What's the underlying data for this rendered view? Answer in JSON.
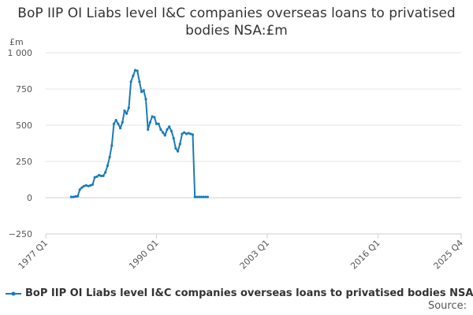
{
  "chart_data": {
    "type": "line",
    "title": "BoP IIP OI Liabs level I&C companies overseas loans to privatised bodies NSA:£m",
    "ylabel": "£m",
    "xlabel": "",
    "ylim": [
      -250,
      1000
    ],
    "y_ticks": [
      -250,
      0,
      250,
      500,
      750,
      1000
    ],
    "y_tick_labels": [
      "−250",
      "0",
      "250",
      "500",
      "750",
      "1 000"
    ],
    "x_range": [
      "1977 Q1",
      "2025 Q4"
    ],
    "x_ticks": [
      "1977 Q1",
      "1990 Q1",
      "2003 Q1",
      "2016 Q1",
      "2025 Q4"
    ],
    "grid": true,
    "legend_position": "bottom",
    "series": [
      {
        "name": "BoP IIP OI Liabs level I&C companies overseas loans to privatised bodies NSA:£m",
        "color": "#1a7bb9",
        "points": [
          [
            "1980 Q1",
            5
          ],
          [
            "1980 Q2",
            5
          ],
          [
            "1980 Q3",
            8
          ],
          [
            "1980 Q4",
            10
          ],
          [
            "1981 Q1",
            55
          ],
          [
            "1981 Q2",
            70
          ],
          [
            "1981 Q3",
            80
          ],
          [
            "1981 Q4",
            85
          ],
          [
            "1982 Q1",
            80
          ],
          [
            "1982 Q2",
            85
          ],
          [
            "1982 Q3",
            90
          ],
          [
            "1982 Q4",
            140
          ],
          [
            "1983 Q1",
            145
          ],
          [
            "1983 Q2",
            155
          ],
          [
            "1983 Q3",
            150
          ],
          [
            "1983 Q4",
            150
          ],
          [
            "1984 Q1",
            175
          ],
          [
            "1984 Q2",
            220
          ],
          [
            "1984 Q3",
            280
          ],
          [
            "1984 Q4",
            360
          ],
          [
            "1985 Q1",
            510
          ],
          [
            "1985 Q2",
            535
          ],
          [
            "1985 Q3",
            510
          ],
          [
            "1985 Q4",
            480
          ],
          [
            "1986 Q1",
            520
          ],
          [
            "1986 Q2",
            600
          ],
          [
            "1986 Q3",
            580
          ],
          [
            "1986 Q4",
            620
          ],
          [
            "1987 Q1",
            800
          ],
          [
            "1987 Q2",
            840
          ],
          [
            "1987 Q3",
            880
          ],
          [
            "1987 Q4",
            875
          ],
          [
            "1988 Q1",
            800
          ],
          [
            "1988 Q2",
            730
          ],
          [
            "1988 Q3",
            740
          ],
          [
            "1988 Q4",
            680
          ],
          [
            "1989 Q1",
            470
          ],
          [
            "1989 Q2",
            520
          ],
          [
            "1989 Q3",
            560
          ],
          [
            "1989 Q4",
            555
          ],
          [
            "1990 Q1",
            510
          ],
          [
            "1990 Q2",
            510
          ],
          [
            "1990 Q3",
            470
          ],
          [
            "1990 Q4",
            450
          ],
          [
            "1991 Q1",
            430
          ],
          [
            "1991 Q2",
            470
          ],
          [
            "1991 Q3",
            490
          ],
          [
            "1991 Q4",
            460
          ],
          [
            "1992 Q1",
            410
          ],
          [
            "1992 Q2",
            340
          ],
          [
            "1992 Q3",
            320
          ],
          [
            "1992 Q4",
            370
          ],
          [
            "1993 Q1",
            440
          ],
          [
            "1993 Q2",
            450
          ],
          [
            "1993 Q3",
            440
          ],
          [
            "1993 Q4",
            445
          ],
          [
            "1994 Q1",
            440
          ],
          [
            "1994 Q2",
            435
          ],
          [
            "1994 Q3",
            5
          ],
          [
            "1994 Q4",
            5
          ],
          [
            "1995 Q1",
            5
          ],
          [
            "1995 Q2",
            5
          ],
          [
            "1995 Q3",
            5
          ],
          [
            "1995 Q4",
            5
          ],
          [
            "1996 Q1",
            5
          ]
        ]
      }
    ],
    "source_label": "Source:"
  }
}
